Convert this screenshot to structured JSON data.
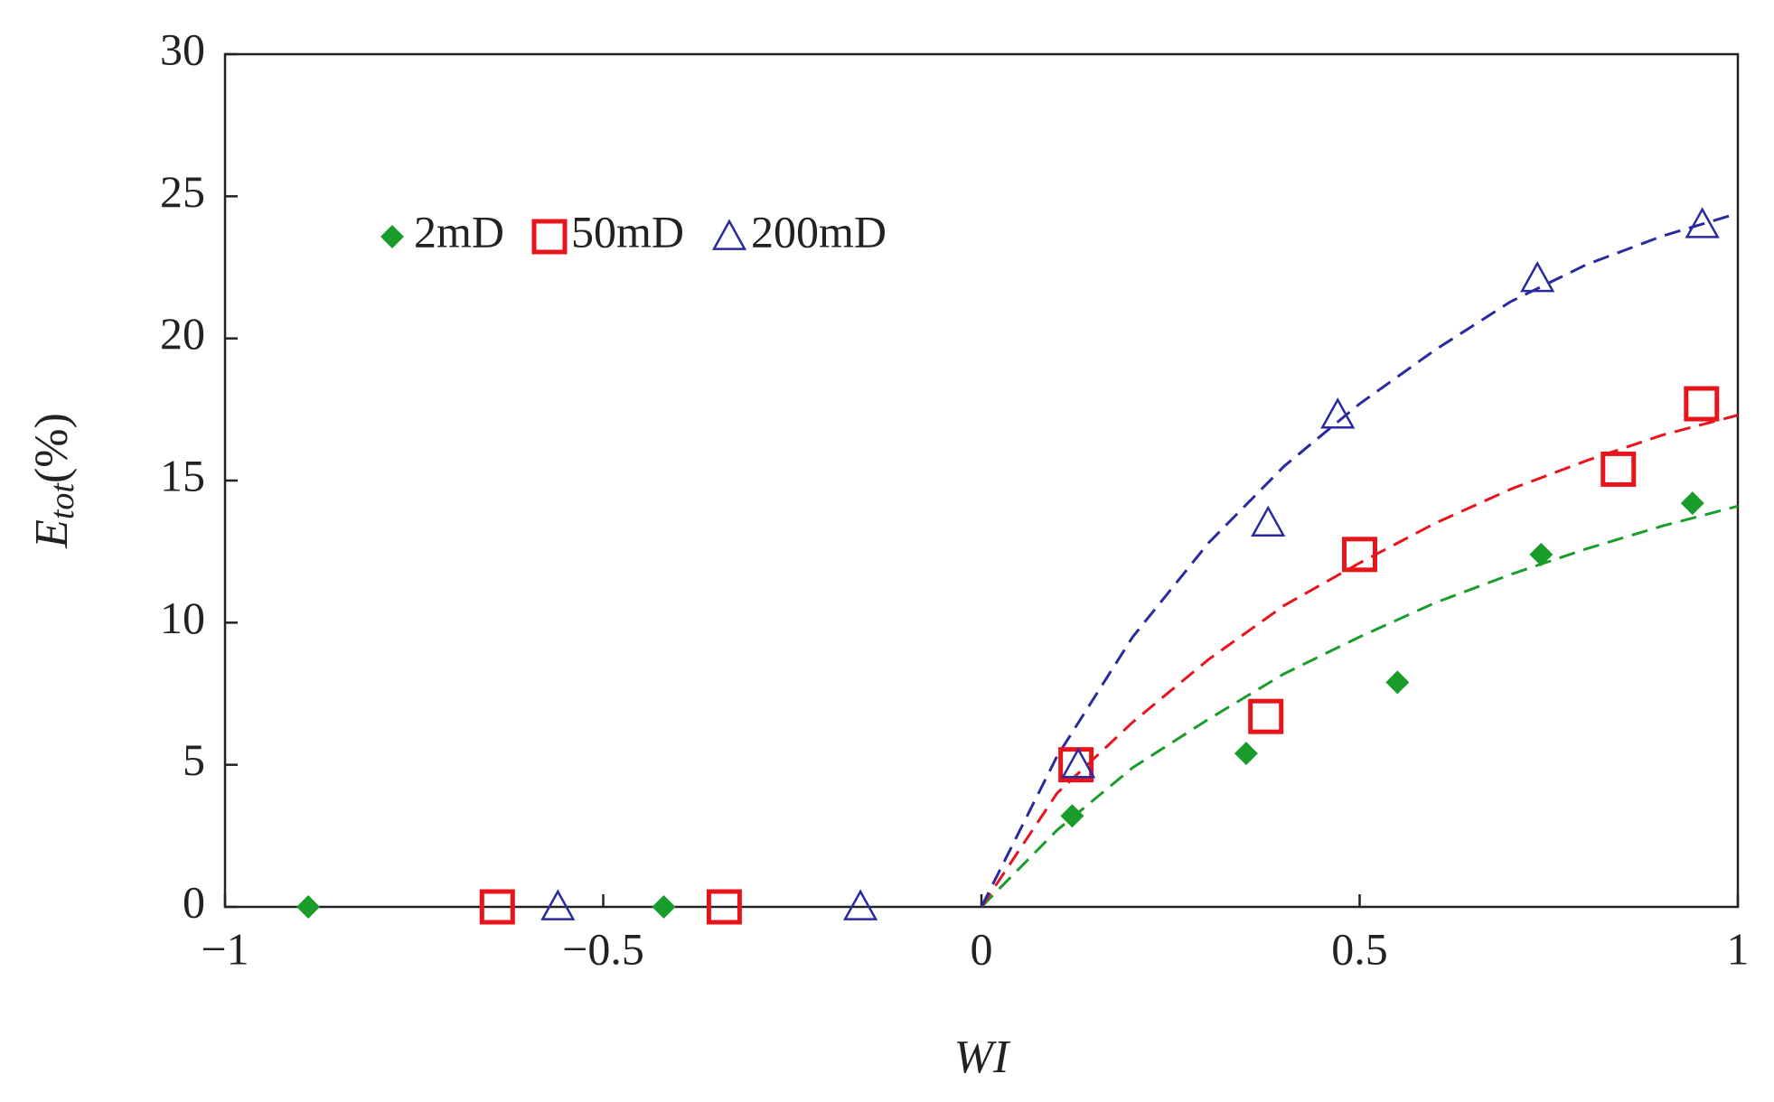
{
  "chart_data": {
    "type": "scatter",
    "xlabel": "WI",
    "ylabel": {
      "symbol": "E",
      "subscript": "tot",
      "unit": "(%)"
    },
    "xlim": [
      -1,
      1
    ],
    "ylim": [
      0,
      30
    ],
    "xticks": [
      {
        "value": -1,
        "label": "−1"
      },
      {
        "value": -0.5,
        "label": "−0.5"
      },
      0,
      0.5,
      1
    ],
    "yticks": [
      0,
      5,
      10,
      15,
      20,
      25,
      30
    ],
    "legend": "top-left",
    "series": [
      {
        "name": "2mD",
        "color": "#1a9c2a",
        "marker": "diamond",
        "x": [
          -0.89,
          -0.42,
          0.12,
          0.35,
          0.55,
          0.74,
          0.94
        ],
        "values": [
          0,
          0,
          3.2,
          5.4,
          7.9,
          12.4,
          14.2
        ],
        "fit": {
          "x": [
            0,
            0.1,
            0.2,
            0.3,
            0.4,
            0.5,
            0.6,
            0.7,
            0.8,
            0.9,
            1
          ],
          "values": [
            0,
            2.7,
            4.9,
            6.6,
            8.2,
            9.5,
            10.7,
            11.7,
            12.6,
            13.4,
            14.1
          ]
        }
      },
      {
        "name": "50mD",
        "color": "#e8141c",
        "marker": "square",
        "x": [
          -0.64,
          -0.34,
          0.125,
          0.376,
          0.5,
          0.842,
          0.952
        ],
        "values": [
          0,
          0,
          5,
          6.7,
          12.4,
          15.4,
          17.7
        ],
        "fit": {
          "x": [
            0,
            0.1,
            0.2,
            0.3,
            0.4,
            0.5,
            0.6,
            0.7,
            0.8,
            0.9,
            1
          ],
          "values": [
            0,
            4,
            6.5,
            8.7,
            10.6,
            12.1,
            13.5,
            14.7,
            15.7,
            16.6,
            17.3
          ]
        }
      },
      {
        "name": "200mD",
        "color": "#2a2aa0",
        "marker": "triangle",
        "x": [
          -0.56,
          -0.16,
          0.128,
          0.379,
          0.471,
          0.735,
          0.953
        ],
        "values": [
          0,
          0,
          5,
          13.5,
          17.3,
          22.1,
          24
        ],
        "fit": {
          "x": [
            0,
            0.1,
            0.2,
            0.3,
            0.4,
            0.5,
            0.6,
            0.7,
            0.8,
            0.9,
            1
          ],
          "values": [
            0,
            5.3,
            9.5,
            12.8,
            15.5,
            17.7,
            19.6,
            21.3,
            22.6,
            23.6,
            24.4
          ]
        }
      }
    ]
  }
}
